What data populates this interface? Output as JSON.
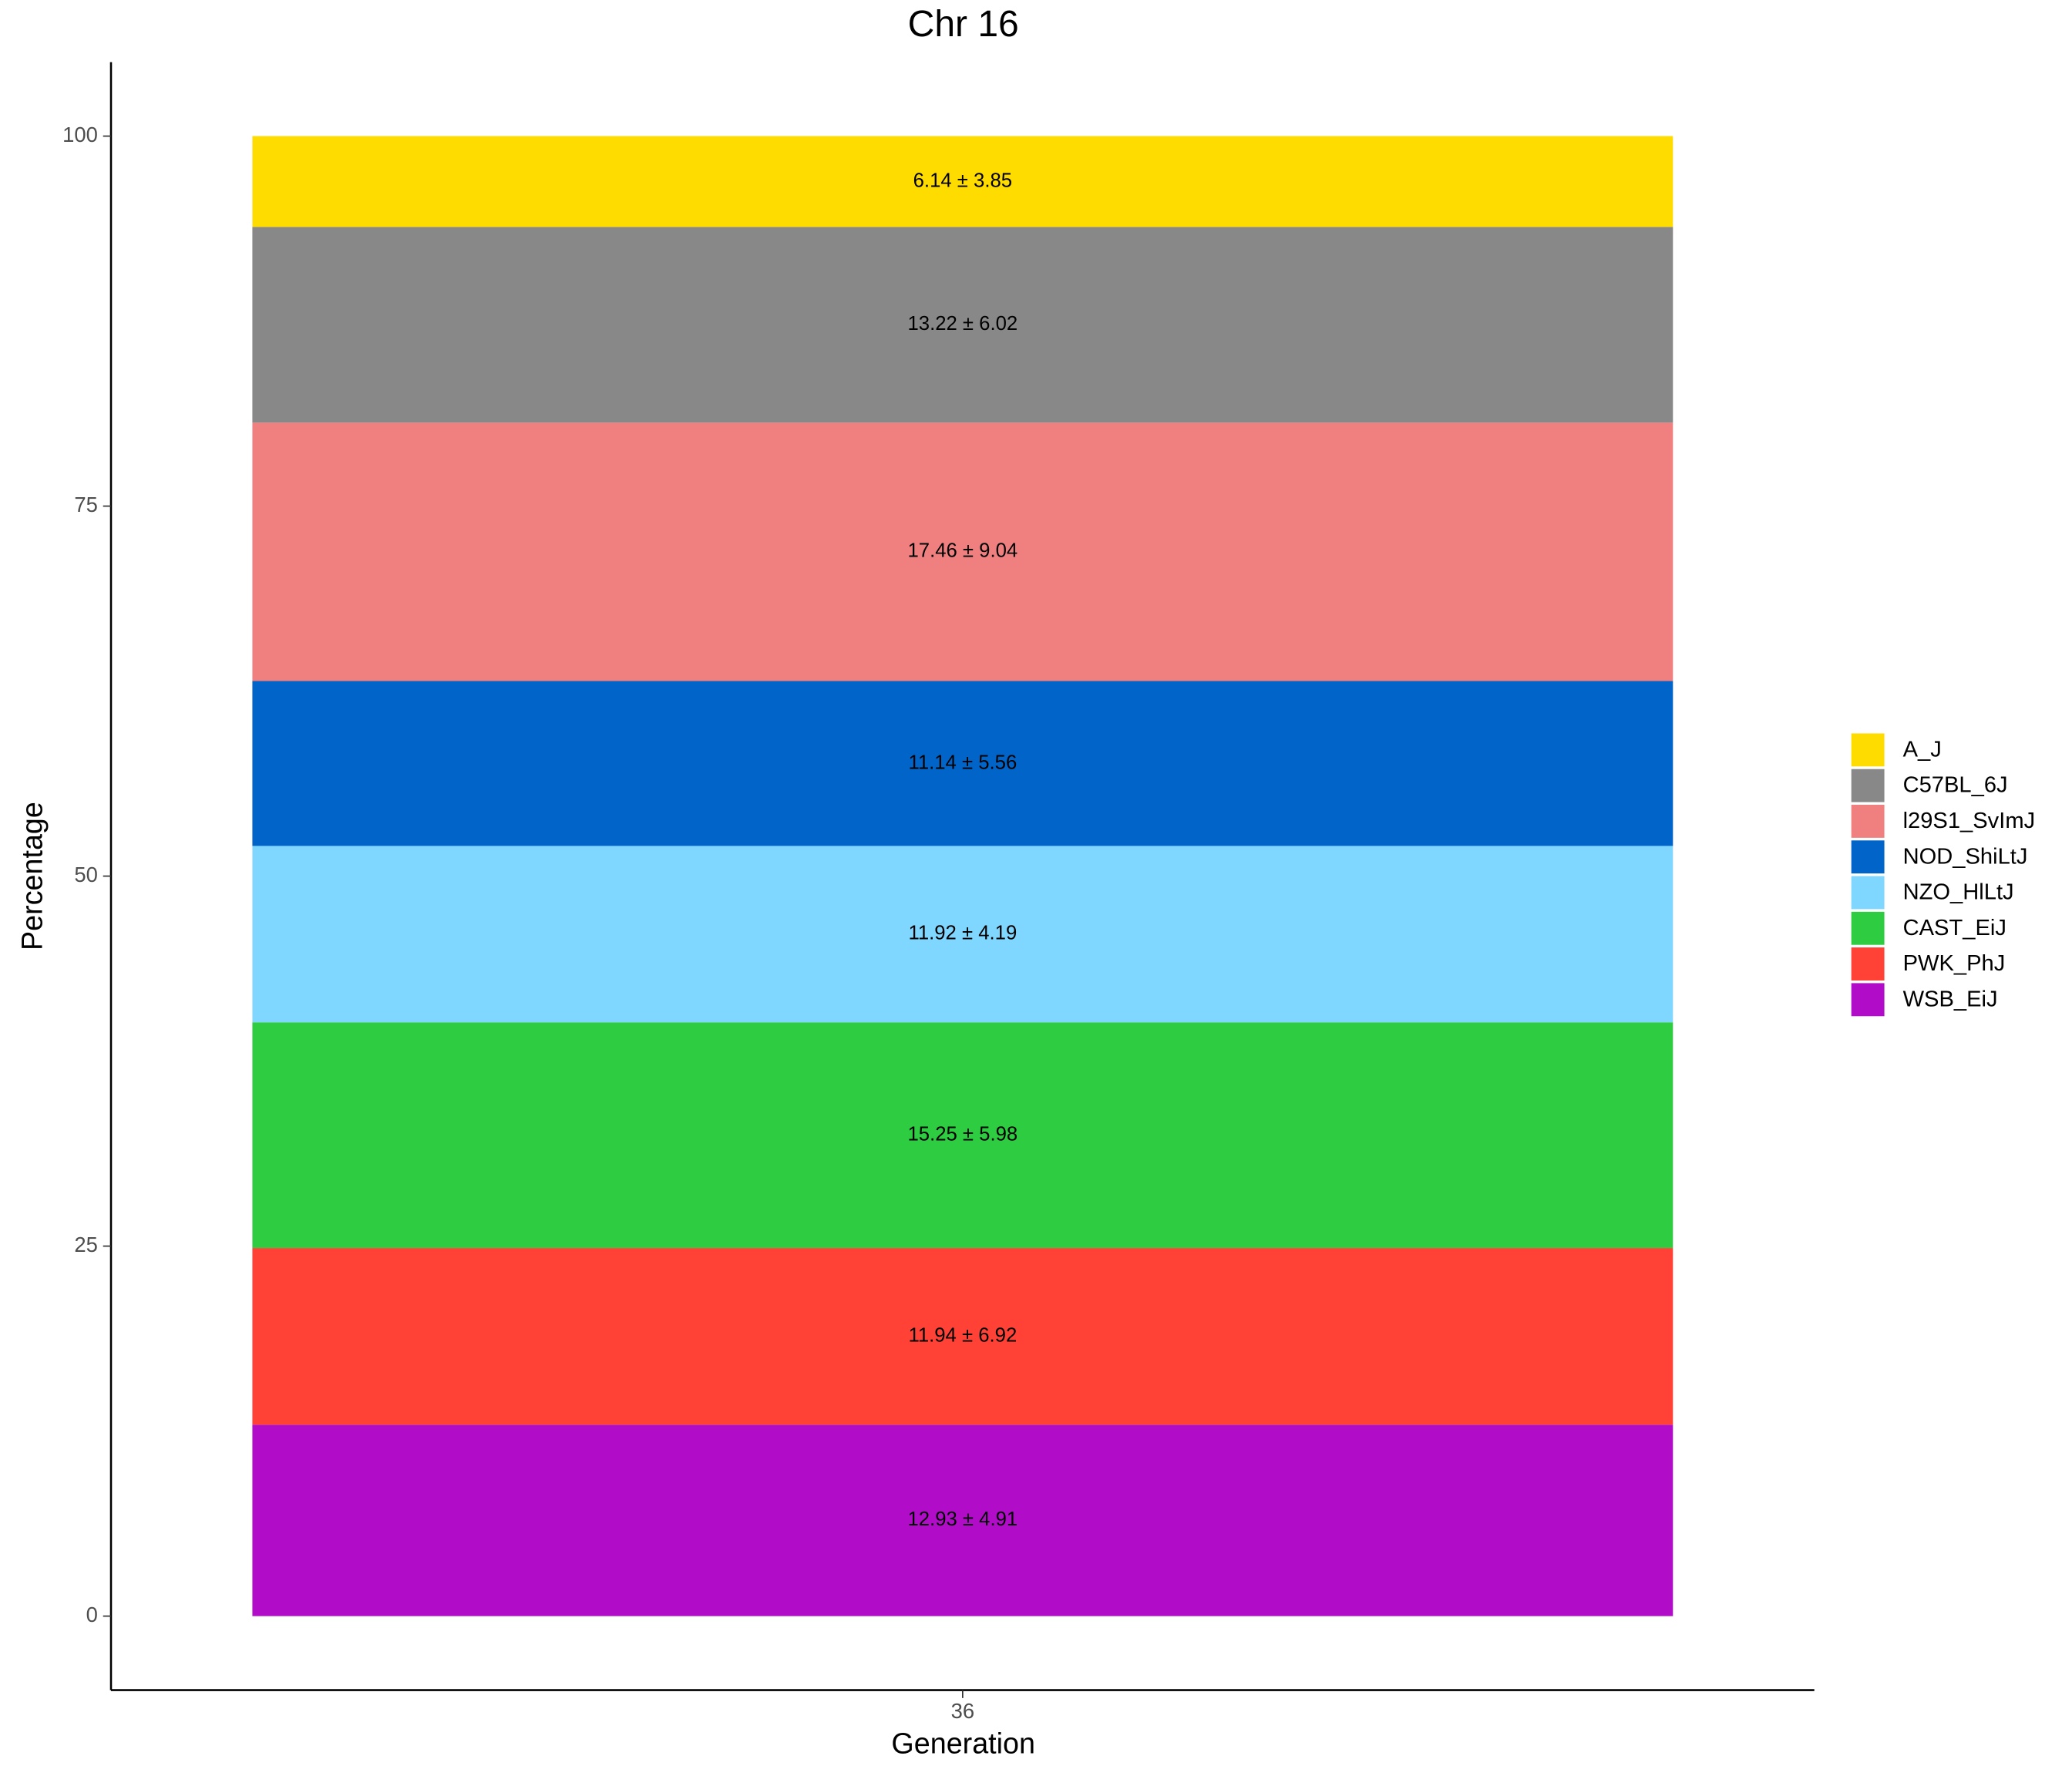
{
  "chart_data": {
    "type": "stacked_bar",
    "title": "Chr 16",
    "x_label": "Generation",
    "y_label": "Percentage",
    "categories": [
      "36"
    ],
    "series": [
      {
        "name": "A_J",
        "color": "#ffdc00",
        "values": [
          6.14
        ],
        "value_labels": [
          "6.14 ± 3.85"
        ]
      },
      {
        "name": "C57BL_6J",
        "color": "#888888",
        "values": [
          13.22
        ],
        "value_labels": [
          "13.22 ± 6.02"
        ]
      },
      {
        "name": "l29S1_SvImJ",
        "color": "#f08080",
        "values": [
          17.46
        ],
        "value_labels": [
          "17.46 ± 9.04"
        ]
      },
      {
        "name": "NOD_ShiLtJ",
        "color": "#0064c9",
        "values": [
          11.14
        ],
        "value_labels": [
          "11.14 ± 5.56"
        ]
      },
      {
        "name": "NZO_HlLtJ",
        "color": "#7fd7ff",
        "values": [
          11.92
        ],
        "value_labels": [
          "11.92 ± 4.19"
        ]
      },
      {
        "name": "CAST_EiJ",
        "color": "#2ecc40",
        "values": [
          15.25
        ],
        "value_labels": [
          "15.25 ± 5.98"
        ]
      },
      {
        "name": "PWK_PhJ",
        "color": "#ff4136",
        "values": [
          11.94
        ],
        "value_labels": [
          "11.94 ± 6.92"
        ]
      },
      {
        "name": "WSB_EiJ",
        "color": "#b10dc9",
        "values": [
          12.93
        ],
        "value_labels": [
          "12.93 ± 4.91"
        ]
      }
    ],
    "ylim": [
      -5,
      105
    ],
    "yticks": [
      0,
      25,
      50,
      75,
      100
    ],
    "grid": false,
    "legend": "right"
  }
}
